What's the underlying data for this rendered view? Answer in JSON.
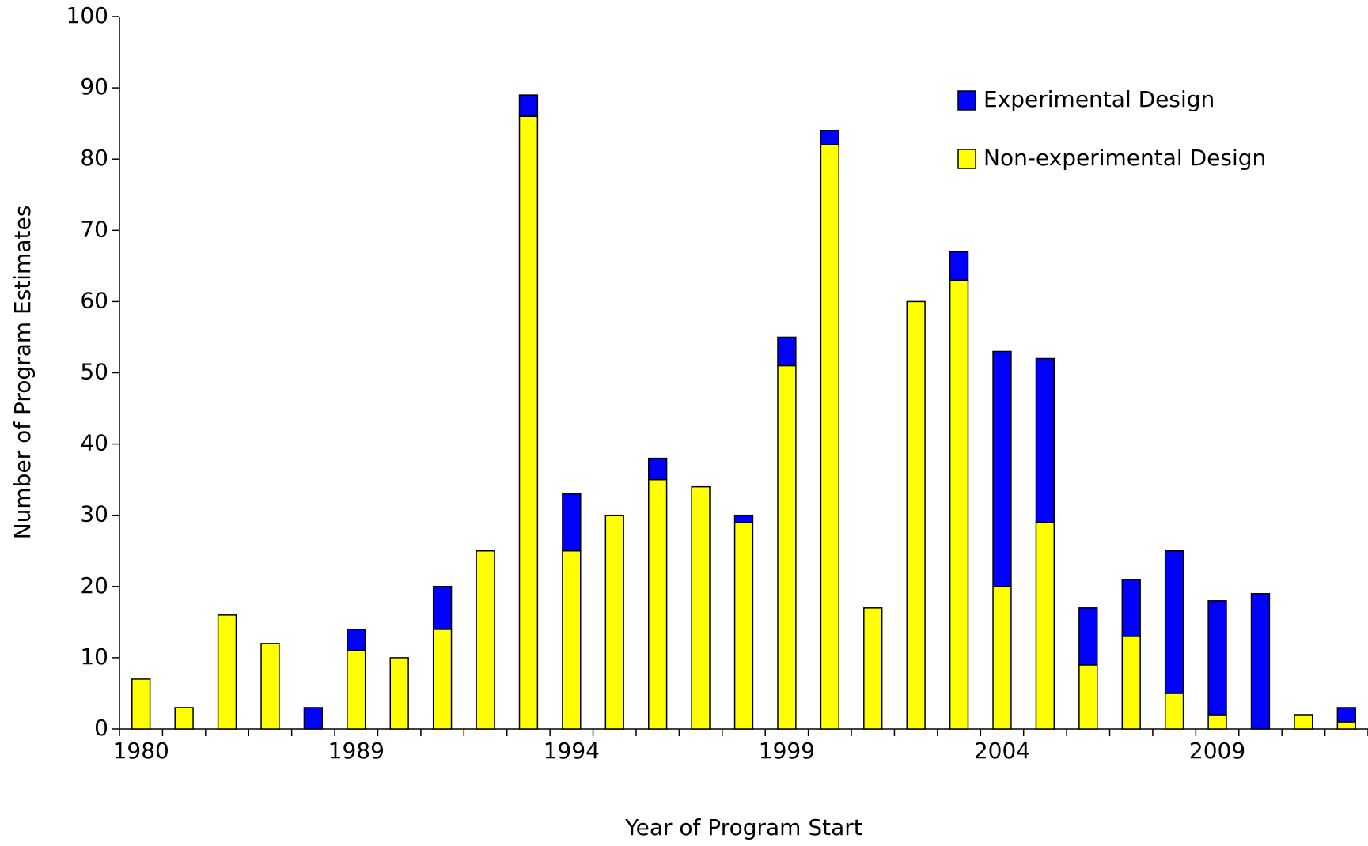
{
  "chart_data": {
    "type": "stacked_bar",
    "x_label": "Year of Program Start",
    "y_label": "Number of Program Estimates",
    "categories": [
      "1980",
      null,
      null,
      null,
      null,
      "1989",
      null,
      null,
      null,
      null,
      "1994",
      null,
      null,
      null,
      null,
      "1999",
      null,
      null,
      null,
      null,
      "2004",
      null,
      null,
      null,
      null,
      "2009",
      null,
      null,
      null
    ],
    "series": [
      {
        "name": "Experimental Design",
        "color": "#0000ff",
        "values": [
          0,
          0,
          0,
          0,
          3,
          3,
          0,
          6,
          0,
          3,
          8,
          0,
          3,
          0,
          1,
          4,
          2,
          0,
          0,
          4,
          33,
          23,
          8,
          8,
          20,
          16,
          19,
          0,
          2
        ]
      },
      {
        "name": "Non-experimental Design",
        "color": "#ffff00",
        "values": [
          7,
          3,
          16,
          12,
          0,
          11,
          10,
          14,
          25,
          86,
          25,
          30,
          35,
          34,
          29,
          51,
          82,
          17,
          60,
          63,
          20,
          29,
          9,
          13,
          5,
          2,
          0,
          2,
          1
        ]
      }
    ],
    "ylim": [
      0,
      100
    ],
    "yticks": [
      0,
      10,
      20,
      30,
      40,
      50,
      60,
      70,
      80,
      90,
      100
    ],
    "grid": false,
    "legend": "upper right"
  }
}
